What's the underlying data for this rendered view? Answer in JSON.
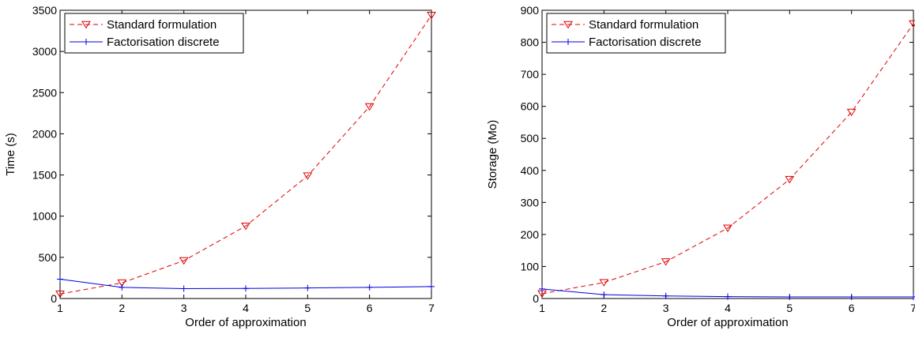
{
  "chart_data": [
    {
      "type": "line",
      "xlabel": "Order of approximation",
      "ylabel": "Time (s)",
      "xlim": [
        1,
        7
      ],
      "ylim": [
        0,
        3500
      ],
      "xticks": [
        "1",
        "2",
        "3",
        "4",
        "5",
        "6",
        "7"
      ],
      "yticks": [
        "0",
        "500",
        "1000",
        "1500",
        "2000",
        "2500",
        "3000",
        "3500"
      ],
      "grid": false,
      "legend_position": "top-left",
      "x": [
        1,
        2,
        3,
        4,
        5,
        6,
        7
      ],
      "series": [
        {
          "name": "Standard formulation",
          "color": "#e00000",
          "style": "dashed",
          "marker": "triangle-down",
          "values": [
            55,
            190,
            460,
            880,
            1490,
            2330,
            3440
          ]
        },
        {
          "name": "Factorisation discrete",
          "color": "#0000e0",
          "style": "solid",
          "marker": "plus",
          "values": [
            235,
            135,
            120,
            122,
            128,
            135,
            145
          ]
        }
      ]
    },
    {
      "type": "line",
      "xlabel": "Order of approximation",
      "ylabel": "Storage (Mo)",
      "xlim": [
        1,
        7
      ],
      "ylim": [
        0,
        900
      ],
      "xticks": [
        "1",
        "2",
        "3",
        "4",
        "5",
        "6",
        "7"
      ],
      "yticks": [
        "0",
        "100",
        "200",
        "300",
        "400",
        "500",
        "600",
        "700",
        "800",
        "900"
      ],
      "grid": false,
      "legend_position": "top-left",
      "x": [
        1,
        2,
        3,
        4,
        5,
        6,
        7
      ],
      "series": [
        {
          "name": "Standard formulation",
          "color": "#e00000",
          "style": "dashed",
          "marker": "triangle-down",
          "values": [
            15,
            50,
            115,
            220,
            372,
            582,
            858
          ]
        },
        {
          "name": "Factorisation discrete",
          "color": "#0000e0",
          "style": "solid",
          "marker": "plus",
          "values": [
            30,
            12,
            8,
            6,
            5,
            5,
            5
          ]
        }
      ]
    }
  ]
}
